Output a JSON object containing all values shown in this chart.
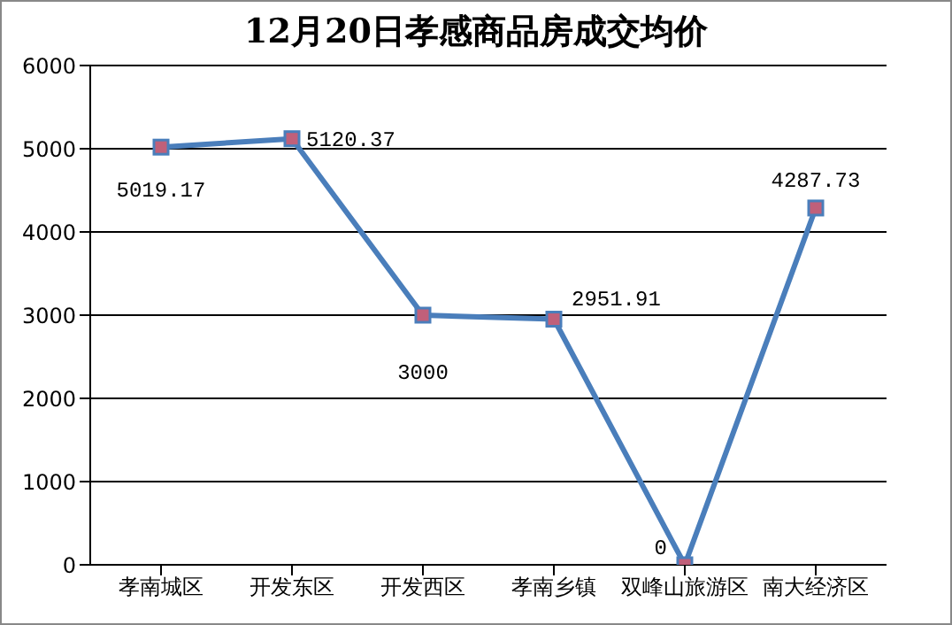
{
  "chart_data": {
    "type": "line",
    "title": "12月20日孝感商品房成交均价",
    "categories": [
      "孝南城区",
      "开发东区",
      "开发西区",
      "孝南乡镇",
      "双峰山旅游区",
      "南大经济区"
    ],
    "series": [
      {
        "color": "#4a7ebb",
        "values": [
          5019.17,
          5120.37,
          3000,
          2951.91,
          0,
          4287.73
        ]
      }
    ],
    "ylim": [
      0,
      6000
    ],
    "yticks": [
      0,
      1000,
      2000,
      3000,
      4000,
      5000,
      6000
    ],
    "grid": "y",
    "legend": false,
    "marker": "square",
    "line_style": "solid",
    "data_labels": true
  }
}
